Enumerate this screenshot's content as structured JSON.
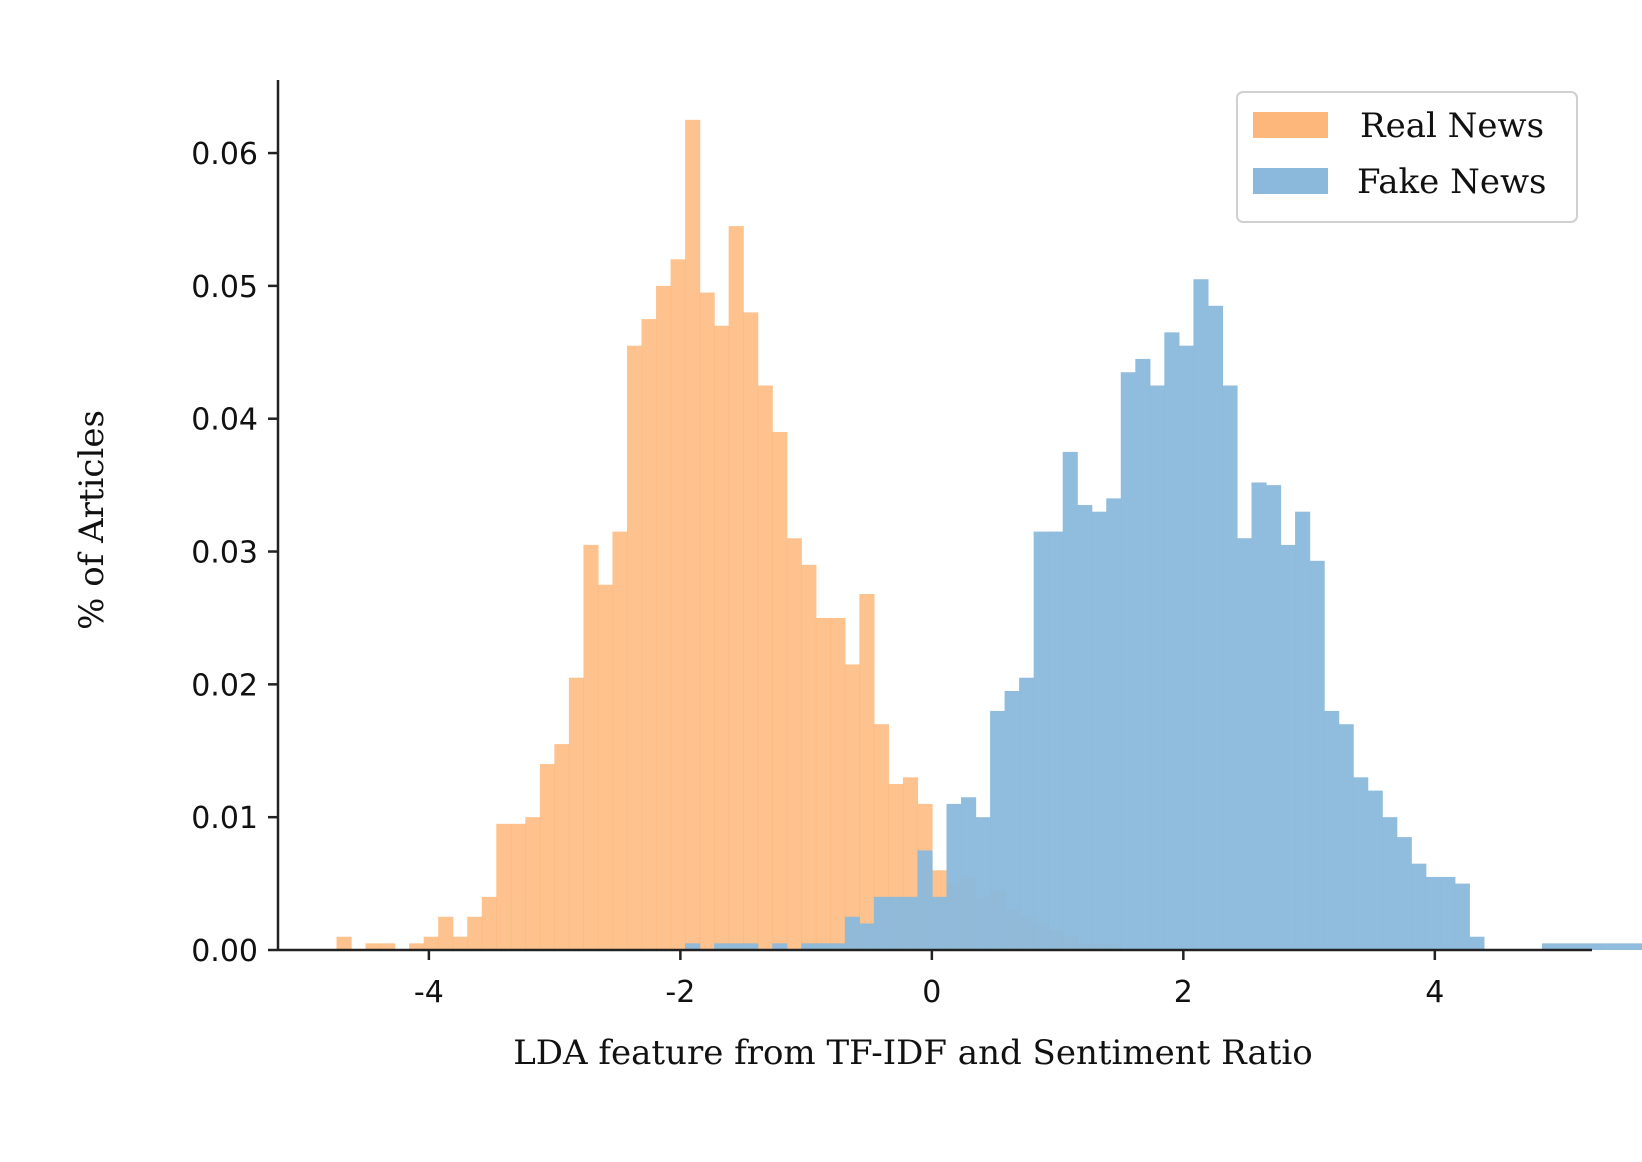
{
  "chart_data": {
    "type": "histogram",
    "xlabel": "LDA feature from TF-IDF and Sentiment Ratio",
    "ylabel": "% of Articles",
    "xlim": [
      -5.2,
      5.25
    ],
    "ylim": [
      0,
      0.0655
    ],
    "x_ticks": [
      -4,
      -2,
      0,
      2,
      4
    ],
    "x_tick_labels": [
      "-4",
      "-2",
      "0",
      "2",
      "4"
    ],
    "y_ticks": [
      0,
      0.01,
      0.02,
      0.03,
      0.04,
      0.05,
      0.06
    ],
    "y_tick_labels": [
      "0.00",
      "0.01",
      "0.02",
      "0.03",
      "0.04",
      "0.05",
      "0.06"
    ],
    "bin_start": -4.85,
    "bin_width": 0.1155,
    "legend": {
      "position": "top-right"
    },
    "grid": false,
    "series": [
      {
        "name": "Real News",
        "color": "#fdb77a",
        "opacity": 0.85,
        "values": [
          0,
          0.001,
          0,
          0.0005,
          0.0005,
          0,
          0.0005,
          0.001,
          0.0025,
          0.001,
          0.0025,
          0.004,
          0.0095,
          0.0095,
          0.01,
          0.014,
          0.0155,
          0.0205,
          0.0305,
          0.0275,
          0.0315,
          0.0455,
          0.0475,
          0.05,
          0.052,
          0.0625,
          0.0495,
          0.047,
          0.0545,
          0.048,
          0.0425,
          0.039,
          0.031,
          0.029,
          0.025,
          0.025,
          0.0215,
          0.0268,
          0.017,
          0.0125,
          0.013,
          0.011,
          0.006,
          0.005,
          0.0055,
          0.004,
          0.0045,
          0.003,
          0.0025,
          0.002,
          0.0015,
          0.001,
          0.0005,
          0.0005,
          0.0005,
          0,
          0,
          0,
          0,
          0,
          0,
          0,
          0,
          0,
          0,
          0,
          0,
          0,
          0,
          0,
          0,
          0,
          0,
          0,
          0,
          0,
          0,
          0,
          0,
          0,
          0,
          0,
          0,
          0,
          0,
          0,
          0,
          0,
          0,
          0,
          0,
          0,
          0,
          0,
          0
        ]
      },
      {
        "name": "Fake News",
        "color": "#8ab9db",
        "opacity": 0.95,
        "values": [
          0,
          0,
          0,
          0,
          0,
          0,
          0,
          0,
          0,
          0,
          0,
          0,
          0,
          0,
          0,
          0,
          0,
          0,
          0,
          0,
          0,
          0,
          0,
          0,
          0,
          0.0005,
          0,
          0.0005,
          0.0005,
          0.0005,
          0,
          0.0005,
          0,
          0.0005,
          0.0005,
          0.0005,
          0.0025,
          0.002,
          0.004,
          0.004,
          0.004,
          0.0075,
          0.004,
          0.011,
          0.0115,
          0.01,
          0.018,
          0.0195,
          0.0205,
          0.0315,
          0.0315,
          0.0375,
          0.0335,
          0.033,
          0.034,
          0.0435,
          0.0445,
          0.0425,
          0.0465,
          0.0455,
          0.0505,
          0.0485,
          0.0425,
          0.031,
          0.0352,
          0.035,
          0.0305,
          0.033,
          0.0293,
          0.018,
          0.017,
          0.013,
          0.012,
          0.01,
          0.0085,
          0.0065,
          0.0055,
          0.0055,
          0.005,
          0.001,
          0,
          0,
          0,
          0,
          0.0005,
          0.0005,
          0.0005,
          0.0005,
          0.0005,
          0.0005,
          0.0005,
          0.0017,
          0,
          0,
          0
        ]
      }
    ]
  }
}
